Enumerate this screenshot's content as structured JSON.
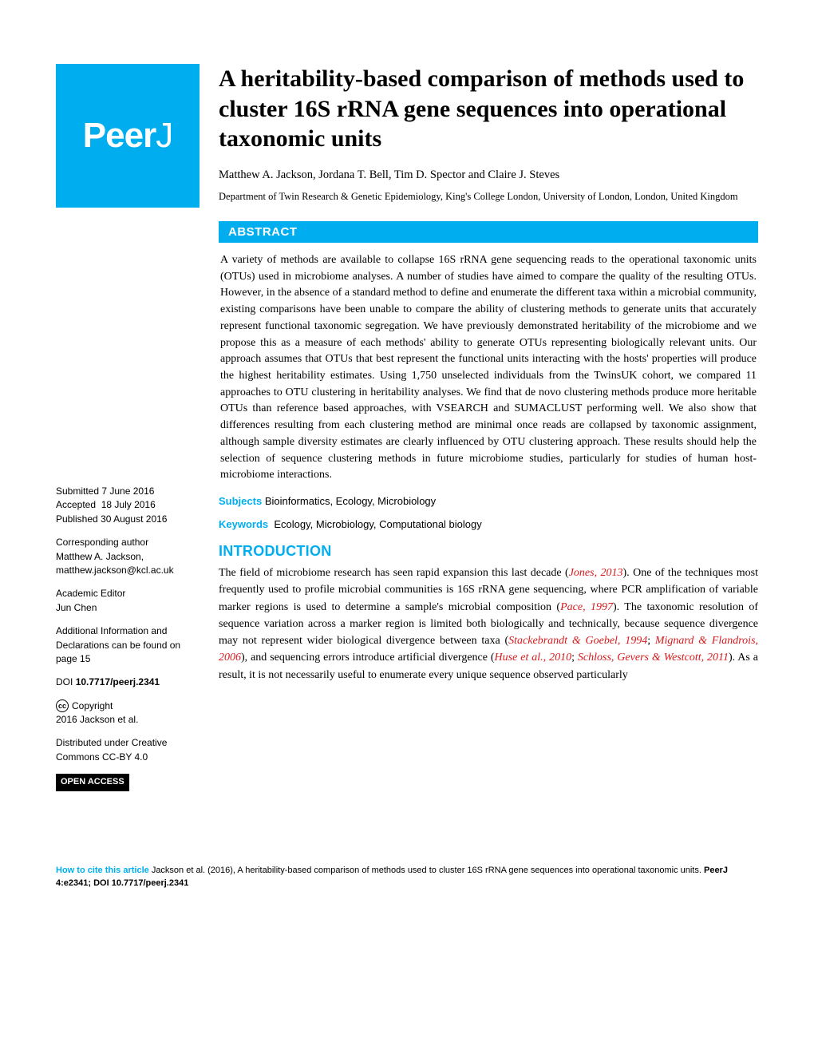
{
  "brand": {
    "name": "PeerJ",
    "background_color": "#00aeef",
    "text_color": "#ffffff"
  },
  "accent_color": "#00aeef",
  "ref_color": "#d7191c",
  "title": "A heritability-based comparison of methods used to cluster 16S rRNA gene sequences into operational taxonomic units",
  "authors": "Matthew A. Jackson,  Jordana T. Bell,  Tim D. Spector  and  Claire J. Steves",
  "affiliation": "Department of Twin Research & Genetic Epidemiology, King's College London, University of London, London, United Kingdom",
  "abstract": {
    "label": "ABSTRACT",
    "text": "A variety of methods are available to collapse 16S rRNA gene sequencing reads to the operational taxonomic units (OTUs) used in microbiome analyses. A number of studies have aimed to compare the quality of the resulting OTUs. However, in the absence of a standard method to define and enumerate the different taxa within a microbial community, existing comparisons have been unable to compare the ability of clustering methods to generate units that accurately represent functional taxonomic segregation. We have previously demonstrated heritability of the microbiome and we propose this as a measure of each methods' ability to generate OTUs representing biologically relevant units. Our approach assumes that OTUs that best represent the functional units interacting with the hosts' properties will produce the highest heritability estimates. Using 1,750 unselected individuals from the TwinsUK cohort, we compared 11 approaches to OTU clustering in heritability analyses. We find that de novo clustering methods produce more heritable OTUs than reference based approaches, with VSEARCH and SUMACLUST performing well. We also show that differences resulting from each clustering method are minimal once reads are collapsed by taxonomic assignment, although sample diversity estimates are clearly influenced by OTU clustering approach. These results should help the selection of sequence clustering methods in future microbiome studies, particularly for studies of human host-microbiome interactions."
  },
  "subjects": {
    "label": "Subjects",
    "value": "Bioinformatics, Ecology, Microbiology"
  },
  "keywords": {
    "label": "Keywords",
    "value": "Ecology, Microbiology, Computational biology"
  },
  "introduction": {
    "label": "INTRODUCTION",
    "parts": [
      {
        "t": "The field of microbiome research has seen rapid expansion this last decade ("
      },
      {
        "t": "Jones, 2013",
        "ref": true
      },
      {
        "t": "). One of the techniques most frequently used to profile microbial communities is 16S rRNA gene sequencing, where PCR amplification of variable marker regions is used to determine a sample's microbial composition ("
      },
      {
        "t": "Pace, 1997",
        "ref": true
      },
      {
        "t": "). The taxonomic resolution of sequence variation across a marker region is limited both biologically and technically, because sequence divergence may not represent wider biological divergence between taxa ("
      },
      {
        "t": "Stackebrandt & Goebel, 1994",
        "ref": true
      },
      {
        "t": "; "
      },
      {
        "t": "Mignard & Flandrois, 2006",
        "ref": true
      },
      {
        "t": "), and sequencing errors introduce artificial divergence ("
      },
      {
        "t": "Huse et al., 2010",
        "ref": true
      },
      {
        "t": "; "
      },
      {
        "t": "Schloss, Gevers & Westcott, 2011",
        "ref": true
      },
      {
        "t": "). As a result, it is not necessarily useful to enumerate every unique sequence observed particularly"
      }
    ]
  },
  "sidebar": {
    "submitted": {
      "label": "Submitted",
      "value": "7 June 2016"
    },
    "accepted": {
      "label": "Accepted",
      "value": "18 July 2016"
    },
    "published": {
      "label": "Published",
      "value": "30 August 2016"
    },
    "corresponding": {
      "label": "Corresponding author",
      "name": "Matthew A. Jackson,",
      "email": "matthew.jackson@kcl.ac.uk"
    },
    "editor": {
      "label": "Academic Editor",
      "value": "Jun Chen"
    },
    "additional": "Additional Information and Declarations can be found on page 15",
    "doi": {
      "label": "DOI",
      "value": "10.7717/peerj.2341"
    },
    "copyright": {
      "label": "Copyright",
      "value": "2016 Jackson et al."
    },
    "distributed": "Distributed under Creative Commons CC-BY 4.0",
    "open_access": "OPEN ACCESS"
  },
  "footer": {
    "label": "How to cite this article",
    "text": "Jackson et al. (2016), A heritability-based comparison of methods used to cluster 16S rRNA gene sequences into operational taxonomic units. ",
    "journal": "PeerJ",
    "volume": " 4:e2341; DOI 10.7717/peerj.2341"
  }
}
